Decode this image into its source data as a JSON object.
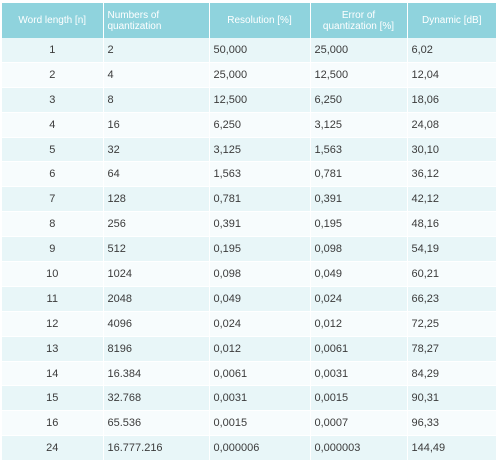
{
  "table": {
    "headers": [
      "Word length [n]",
      "Numbers of quantization",
      "Resolution   [%]",
      "Error of quantization [%]",
      "Dynamic [dB]"
    ],
    "rows": [
      [
        "1",
        "2",
        "50,000",
        "25,000",
        "6,02"
      ],
      [
        "2",
        "4",
        "25,000",
        "12,500",
        "12,04"
      ],
      [
        "3",
        "8",
        "12,500",
        "6,250",
        "18,06"
      ],
      [
        "4",
        "16",
        "6,250",
        "3,125",
        "24,08"
      ],
      [
        "5",
        "32",
        "3,125",
        "1,563",
        "30,10"
      ],
      [
        "6",
        "64",
        "1,563",
        "0,781",
        "36,12"
      ],
      [
        "7",
        "128",
        "0,781",
        "0,391",
        "42,12"
      ],
      [
        "8",
        "256",
        "0,391",
        "0,195",
        "48,16"
      ],
      [
        "9",
        "512",
        "0,195",
        "0,098",
        "54,19"
      ],
      [
        "10",
        "1024",
        "0,098",
        "0,049",
        "60,21"
      ],
      [
        "11",
        "2048",
        "0,049",
        "0,024",
        "66,23"
      ],
      [
        "12",
        "4096",
        "0,024",
        "0,012",
        "72,25"
      ],
      [
        "13",
        "8196",
        "0,012",
        "0,0061",
        "78,27"
      ],
      [
        "14",
        "16.384",
        "0,0061",
        "0,0031",
        "84,29"
      ],
      [
        "15",
        "32.768",
        "0,0031",
        "0,0015",
        "90,31"
      ],
      [
        "16",
        "65.536",
        "0,0015",
        "0,0007",
        "96,33"
      ],
      [
        "24",
        "16.777.216",
        "0,000006",
        "0,000003",
        "144,49"
      ]
    ]
  },
  "colors": {
    "header_bg": "#8fd3dd",
    "header_text": "#ffffff",
    "row_odd": "#e8f6f8",
    "row_even": "#f7fcfd",
    "body_text": "#3b3b3b"
  }
}
